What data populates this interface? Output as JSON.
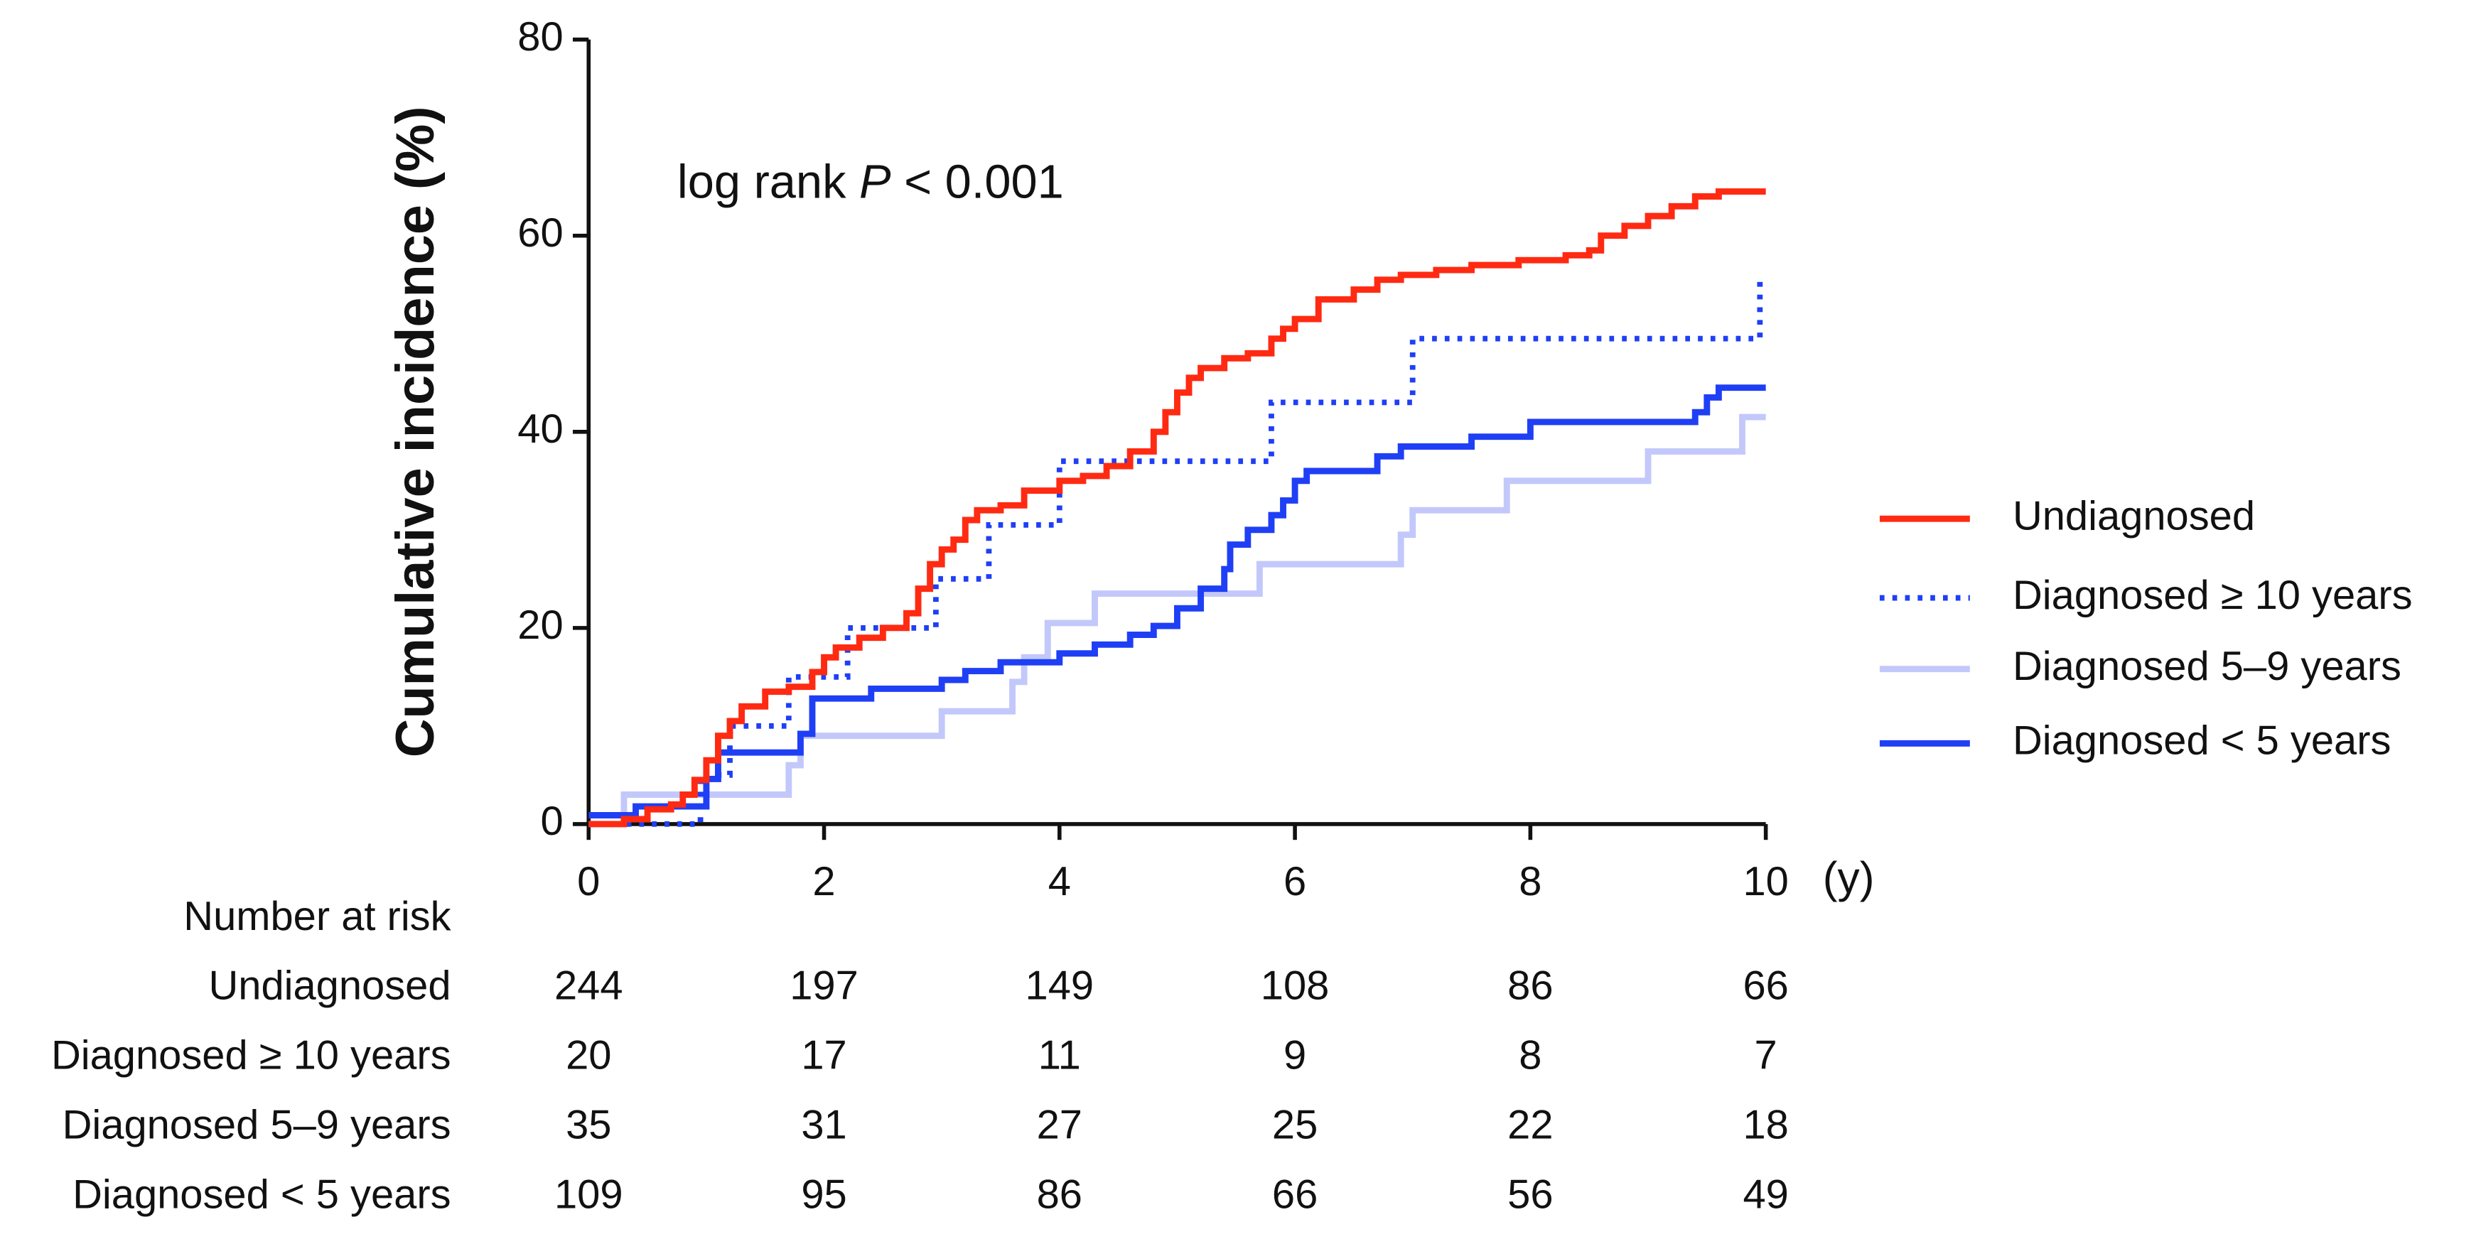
{
  "chart_data": {
    "type": "step",
    "ylabel": "Cumulative incidence (%)",
    "xlabel": "(y)",
    "annotation": [
      "log rank ",
      "P",
      " < 0.001"
    ],
    "xlim": [
      0,
      10
    ],
    "xticks": [
      0,
      2,
      4,
      6,
      8,
      10
    ],
    "ylim": [
      0,
      80
    ],
    "yticks": [
      0,
      20,
      40,
      60,
      80
    ],
    "legend": "right",
    "series": [
      {
        "name": "Undiagnosed",
        "color": "#ff2a12",
        "style": "solid",
        "x": [
          0,
          0.3,
          0.5,
          0.7,
          0.8,
          0.9,
          1.0,
          1.1,
          1.2,
          1.3,
          1.5,
          1.7,
          1.9,
          2.0,
          2.1,
          2.3,
          2.5,
          2.7,
          2.8,
          2.9,
          3.0,
          3.1,
          3.2,
          3.3,
          3.5,
          3.7,
          4.0,
          4.2,
          4.4,
          4.6,
          4.8,
          4.9,
          5.0,
          5.1,
          5.2,
          5.4,
          5.6,
          5.8,
          5.9,
          6.0,
          6.2,
          6.5,
          6.7,
          6.9,
          7.2,
          7.5,
          7.9,
          8.3,
          8.5,
          8.6,
          8.8,
          9.0,
          9.2,
          9.4,
          9.6,
          10.0
        ],
        "values": [
          0,
          0.5,
          1.5,
          2,
          3,
          4.5,
          6.5,
          9,
          10.5,
          12,
          13.5,
          14,
          15.5,
          17,
          18,
          19,
          20,
          21.5,
          24,
          26.5,
          28,
          29,
          31,
          32,
          32.5,
          34,
          35,
          35.5,
          36.5,
          38,
          40,
          42,
          44,
          45.5,
          46.5,
          47.5,
          48,
          49.5,
          50.5,
          51.5,
          53.5,
          54.5,
          55.5,
          56,
          56.5,
          57,
          57.5,
          58,
          58.5,
          60,
          61,
          62,
          63,
          64,
          64.5,
          64.5
        ]
      },
      {
        "name": "Diagnosed ≥ 10 years",
        "color": "#1f3ff5",
        "style": "dotted",
        "x": [
          0,
          0.95,
          1.2,
          1.7,
          2.2,
          2.95,
          3.4,
          4.0,
          5.8,
          7.0,
          9.95
        ],
        "values": [
          0,
          5,
          10,
          15,
          20,
          25,
          30.5,
          37,
          43,
          49.5,
          56
        ]
      },
      {
        "name": "Diagnosed 5–9 years",
        "color": "#c3c8fb",
        "style": "solid",
        "x": [
          0,
          0.3,
          1.7,
          1.8,
          3.0,
          3.6,
          3.7,
          3.9,
          4.3,
          5.7,
          6.9,
          7.0,
          7.8,
          9.0,
          9.8,
          10.0
        ],
        "values": [
          0,
          3,
          6,
          9,
          11.5,
          14.5,
          17,
          20.5,
          23.5,
          26.5,
          29.5,
          32,
          35,
          38,
          41.5,
          41.5
        ]
      },
      {
        "name": "Diagnosed < 5 years",
        "color": "#1f3ff5",
        "style": "solid",
        "x": [
          0,
          0.4,
          1.0,
          1.1,
          1.8,
          1.9,
          2.4,
          3.0,
          3.2,
          3.5,
          4.0,
          4.3,
          4.6,
          4.8,
          5.0,
          5.2,
          5.4,
          5.45,
          5.6,
          5.8,
          5.9,
          6.0,
          6.1,
          6.7,
          6.9,
          7.5,
          8.0,
          9.4,
          9.5,
          9.6,
          10.0
        ],
        "values": [
          0.9,
          1.8,
          4.6,
          7.3,
          9.2,
          12.8,
          13.8,
          14.7,
          15.6,
          16.5,
          17.4,
          18.3,
          19.3,
          20.2,
          22,
          24,
          26,
          28.5,
          30,
          31.5,
          33,
          35,
          36,
          37.5,
          38.5,
          39.5,
          41,
          42,
          43.5,
          44.5,
          44.5
        ]
      }
    ],
    "risk_table": {
      "title": "Number at risk",
      "rows": [
        {
          "name": "Undiagnosed",
          "values": [
            244,
            197,
            149,
            108,
            86,
            66
          ]
        },
        {
          "name": "Diagnosed ≥ 10 years",
          "values": [
            20,
            17,
            11,
            9,
            8,
            7
          ]
        },
        {
          "name": "Diagnosed 5–9 years",
          "values": [
            35,
            31,
            27,
            25,
            22,
            18
          ]
        },
        {
          "name": "Diagnosed < 5 years",
          "values": [
            109,
            95,
            86,
            66,
            56,
            49
          ]
        }
      ]
    }
  }
}
